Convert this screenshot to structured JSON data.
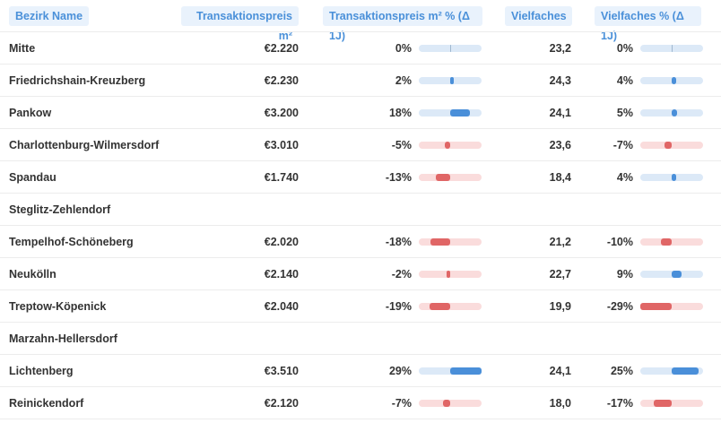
{
  "header": {
    "name": "Bezirk Name",
    "price": "Transaktionspreis m²",
    "price_change": "Transaktionspreis m² % (Δ 1J)",
    "multiple": "Vielfaches",
    "multiple_change": "Vielfaches % (Δ 1J)"
  },
  "table": {
    "rows": [
      {
        "name": "Mitte",
        "price": "€2.220",
        "price_change": {
          "value": 0,
          "label": "0%"
        },
        "multiple": "23,2",
        "multiple_change": {
          "value": 0,
          "label": "0%"
        }
      },
      {
        "name": "Friedrichshain-Kreuzberg",
        "price": "€2.230",
        "price_change": {
          "value": 2,
          "label": "2%"
        },
        "multiple": "24,3",
        "multiple_change": {
          "value": 4,
          "label": "4%"
        }
      },
      {
        "name": "Pankow",
        "price": "€3.200",
        "price_change": {
          "value": 18,
          "label": "18%"
        },
        "multiple": "24,1",
        "multiple_change": {
          "value": 5,
          "label": "5%"
        }
      },
      {
        "name": "Charlottenburg-Wilmersdorf",
        "price": "€3.010",
        "price_change": {
          "value": -5,
          "label": "-5%"
        },
        "multiple": "23,6",
        "multiple_change": {
          "value": -7,
          "label": "-7%"
        }
      },
      {
        "name": "Spandau",
        "price": "€1.740",
        "price_change": {
          "value": -13,
          "label": "-13%"
        },
        "multiple": "18,4",
        "multiple_change": {
          "value": 4,
          "label": "4%"
        }
      },
      {
        "name": "Steglitz-Zehlendorf",
        "price": null,
        "price_change": null,
        "multiple": null,
        "multiple_change": null
      },
      {
        "name": "Tempelhof-Schöneberg",
        "price": "€2.020",
        "price_change": {
          "value": -18,
          "label": "-18%"
        },
        "multiple": "21,2",
        "multiple_change": {
          "value": -10,
          "label": "-10%"
        }
      },
      {
        "name": "Neukölln",
        "price": "€2.140",
        "price_change": {
          "value": -2,
          "label": "-2%"
        },
        "multiple": "22,7",
        "multiple_change": {
          "value": 9,
          "label": "9%"
        }
      },
      {
        "name": "Treptow-Köpenick",
        "price": "€2.040",
        "price_change": {
          "value": -19,
          "label": "-19%"
        },
        "multiple": "19,9",
        "multiple_change": {
          "value": -29,
          "label": "-29%"
        }
      },
      {
        "name": "Marzahn-Hellersdorf",
        "price": null,
        "price_change": null,
        "multiple": null,
        "multiple_change": null
      },
      {
        "name": "Lichtenberg",
        "price": "€3.510",
        "price_change": {
          "value": 29,
          "label": "29%"
        },
        "multiple": "24,1",
        "multiple_change": {
          "value": 25,
          "label": "25%"
        }
      },
      {
        "name": "Reinickendorf",
        "price": "€2.120",
        "price_change": {
          "value": -7,
          "label": "-7%"
        },
        "multiple": "18,0",
        "multiple_change": {
          "value": -17,
          "label": "-17%"
        }
      }
    ]
  }
}
